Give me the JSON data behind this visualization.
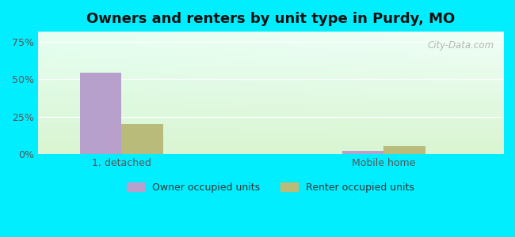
{
  "title": "Owners and renters by unit type in Purdy, MO",
  "categories": [
    "1, detached",
    "Mobile home"
  ],
  "owner_values": [
    54.5,
    2.0
  ],
  "renter_values": [
    20.0,
    5.0
  ],
  "owner_color": "#b8a0cc",
  "renter_color": "#b8bb7a",
  "yticks": [
    0,
    25,
    50,
    75
  ],
  "ytick_labels": [
    "0%",
    "25%",
    "50%",
    "75%"
  ],
  "ylim": [
    0,
    82
  ],
  "legend_owner": "Owner occupied units",
  "legend_renter": "Renter occupied units",
  "bg_outer": "#00eeff",
  "watermark": "City-Data.com",
  "bar_width": 0.35,
  "group_positions": [
    1.0,
    3.2
  ],
  "xlim": [
    0.3,
    4.2
  ]
}
